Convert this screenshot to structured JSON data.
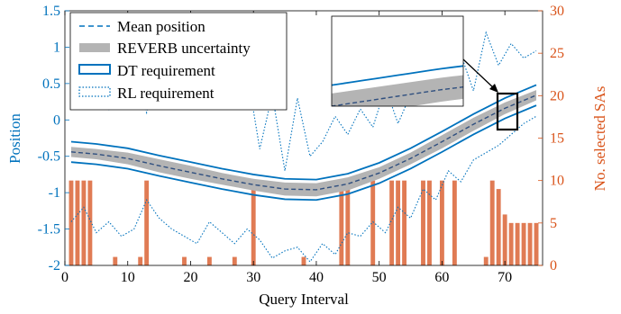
{
  "chart_data": {
    "type": "line",
    "xlabel": "Query Interval",
    "ylabel": "Position",
    "y2label": "No. selected SAs",
    "xlim": [
      0,
      76
    ],
    "ylim": [
      -2,
      1.5
    ],
    "y2lim": [
      0,
      30
    ],
    "xticks": [
      "0",
      "10",
      "20",
      "30",
      "40",
      "50",
      "60",
      "70"
    ],
    "yticks": [
      "-2",
      "-1.5",
      "-1",
      "-0.5",
      "0",
      "0.5",
      "1",
      "1.5"
    ],
    "y2ticks": [
      "0",
      "5",
      "10",
      "15",
      "20",
      "25",
      "30"
    ],
    "colors": {
      "left_axis": "#0072BD",
      "right_axis": "#D95319",
      "bars": "#E07B54",
      "uncertainty": "#b4b4b4",
      "inset_box": "#000000"
    },
    "legend": {
      "placement": "top-left",
      "entries": [
        "Mean position",
        "REVERB uncertainty",
        "DT requirement",
        "RL requirement"
      ]
    },
    "grid": false,
    "inset": {
      "description": "zoomed view near query interval 68-71",
      "x_range": [
        67.5,
        70.5
      ],
      "y_range": [
        0.05,
        0.65
      ]
    },
    "series": [
      {
        "name": "Mean position",
        "style": "dashed",
        "x": [
          1,
          5,
          10,
          15,
          20,
          25,
          30,
          35,
          40,
          45,
          50,
          55,
          60,
          65,
          70,
          75
        ],
        "values": [
          -0.44,
          -0.47,
          -0.53,
          -0.63,
          -0.72,
          -0.81,
          -0.89,
          -0.95,
          -0.96,
          -0.88,
          -0.73,
          -0.53,
          -0.3,
          -0.06,
          0.16,
          0.34
        ]
      },
      {
        "name": "REVERB uncertainty",
        "style": "band",
        "x": [
          1,
          5,
          10,
          15,
          20,
          25,
          30,
          35,
          40,
          45,
          50,
          55,
          60,
          65,
          70,
          75
        ],
        "values": [
          0.07,
          0.07,
          0.08,
          0.09,
          0.09,
          0.08,
          0.08,
          0.09,
          0.09,
          0.09,
          0.08,
          0.08,
          0.09,
          0.09,
          0.08,
          0.07
        ]
      },
      {
        "name": "DT requirement",
        "style": "solid",
        "x": [
          1,
          5,
          10,
          15,
          20,
          25,
          30,
          35,
          40,
          45,
          50,
          55,
          60,
          65,
          70,
          75
        ],
        "values": [
          0.14,
          0.14,
          0.14,
          0.14,
          0.14,
          0.14,
          0.14,
          0.14,
          0.14,
          0.14,
          0.14,
          0.14,
          0.14,
          0.14,
          0.14,
          0.14
        ]
      },
      {
        "name": "RL requirement",
        "style": "dotted",
        "x": [
          1,
          3,
          5,
          7,
          9,
          11,
          13,
          15,
          17,
          19,
          21,
          23,
          25,
          27,
          29,
          31,
          33,
          35,
          37,
          39,
          41,
          43,
          45,
          47,
          49,
          51,
          53,
          55,
          57,
          59,
          61,
          63,
          65,
          67,
          69,
          71,
          73,
          75
        ],
        "upper": [
          0.55,
          0.95,
          0.55,
          0.15,
          0.95,
          0.55,
          0.1,
          1.15,
          0.25,
          0.7,
          0.2,
          0.55,
          0.75,
          0.4,
          0.65,
          -0.4,
          0.35,
          -0.7,
          0.3,
          -0.5,
          -0.3,
          0.05,
          -0.2,
          0.15,
          -0.1,
          0.45,
          -0.05,
          0.35,
          0.7,
          0.25,
          0.75,
          0.9,
          0.4,
          1.2,
          0.75,
          1.05,
          0.85,
          0.95
        ],
        "lower": [
          -1.4,
          -1.2,
          -1.55,
          -1.4,
          -1.6,
          -1.5,
          -1.1,
          -1.35,
          -1.5,
          -1.6,
          -1.7,
          -1.4,
          -1.55,
          -1.7,
          -1.5,
          -1.65,
          -1.9,
          -1.8,
          -1.75,
          -1.95,
          -1.7,
          -1.85,
          -1.55,
          -1.6,
          -1.4,
          -1.55,
          -1.2,
          -1.35,
          -0.95,
          -1.1,
          -0.7,
          -0.85,
          -0.55,
          -0.45,
          -0.35,
          -0.2,
          -0.05,
          0.05
        ]
      },
      {
        "name": "No. selected SAs",
        "type": "bar",
        "axis": "right",
        "x": [
          1,
          2,
          3,
          4,
          8,
          12,
          13,
          19,
          23,
          27,
          30,
          38,
          44,
          45,
          49,
          52,
          53,
          54,
          57,
          58,
          60,
          62,
          67,
          68,
          69,
          70,
          71,
          72,
          73,
          74,
          75
        ],
        "values": [
          10,
          10,
          10,
          10,
          1,
          1,
          10,
          1,
          1,
          1,
          10,
          1,
          10,
          10,
          10,
          10,
          10,
          10,
          10,
          10,
          10,
          10,
          1,
          10,
          9,
          6,
          5,
          5,
          5,
          5,
          5
        ]
      }
    ]
  }
}
